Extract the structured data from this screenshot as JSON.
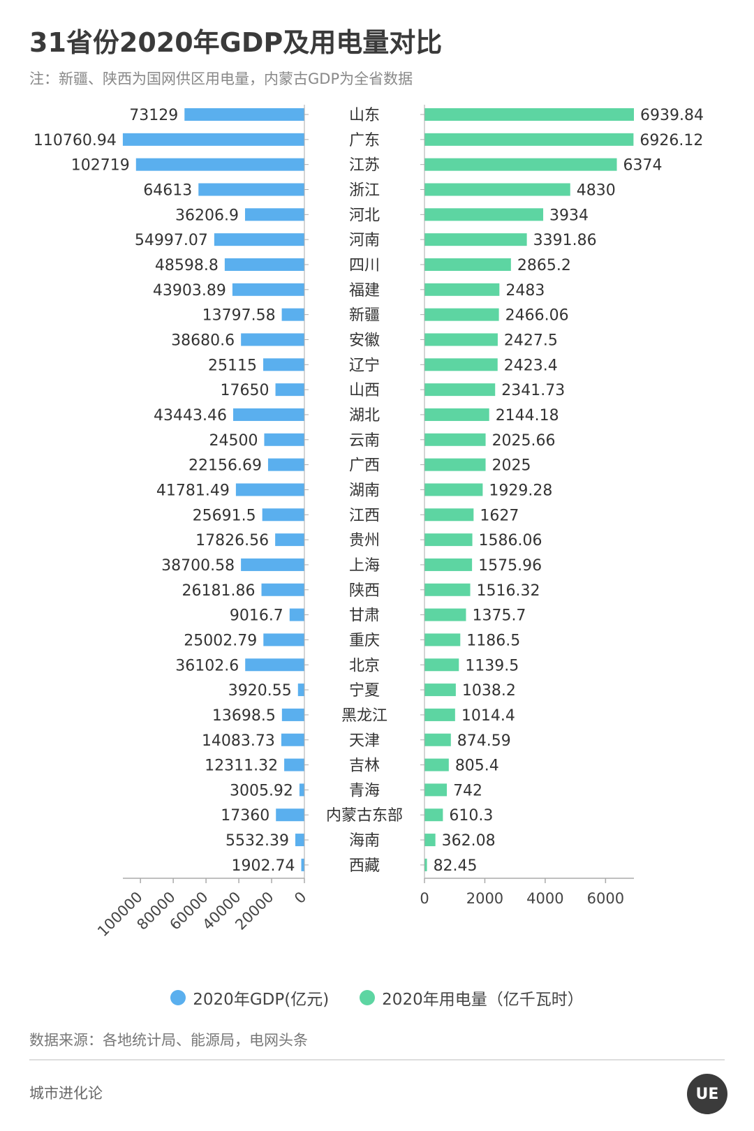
{
  "title": "31省份2020年GDP及用电量对比",
  "subtitle": "注：新疆、陕西为国网供区用电量，内蒙古GDP为全省数据",
  "source": "数据来源：各地统计局、能源局，电网头条",
  "brand": "城市进化论",
  "logo_text": "UE",
  "colors": {
    "gdp": "#5aafee",
    "power": "#5dd5a2",
    "axis": "#aaaaaa",
    "label": "#333333",
    "title": "#3a3a3a"
  },
  "chart_data": {
    "type": "bar",
    "orientation": "horizontal",
    "categories": [
      "山东",
      "广东",
      "江苏",
      "浙江",
      "河北",
      "河南",
      "四川",
      "福建",
      "新疆",
      "安徽",
      "辽宁",
      "山西",
      "湖北",
      "云南",
      "广西",
      "湖南",
      "江西",
      "贵州",
      "上海",
      "陕西",
      "甘肃",
      "重庆",
      "北京",
      "宁夏",
      "黑龙江",
      "天津",
      "吉林",
      "青海",
      "内蒙古东部",
      "海南",
      "西藏"
    ],
    "series": [
      {
        "name": "2020年GDP(亿元)",
        "direction": "left",
        "values": [
          73129,
          110760.94,
          102719,
          64613,
          36206.9,
          54997.07,
          48598.8,
          43903.89,
          13797.58,
          38680.6,
          25115,
          17650,
          43443.46,
          24500,
          22156.69,
          41781.49,
          25691.5,
          17826.56,
          38700.58,
          26181.86,
          9016.7,
          25002.79,
          36102.6,
          3920.55,
          13698.5,
          14083.73,
          12311.32,
          3005.92,
          17360,
          5532.39,
          1902.74
        ],
        "labels": [
          "73129",
          "110760.94",
          "102719",
          "64613",
          "36206.9",
          "54997.07",
          "48598.8",
          "43903.89",
          "13797.58",
          "38680.6",
          "25115",
          "17650",
          "43443.46",
          "24500",
          "22156.69",
          "41781.49",
          "25691.5",
          "17826.56",
          "38700.58",
          "26181.86",
          "9016.7",
          "25002.79",
          "36102.6",
          "3920.55",
          "13698.5",
          "14083.73",
          "12311.32",
          "3005.92",
          "17360",
          "5532.39",
          "1902.74"
        ],
        "ticks": [
          0,
          20000,
          40000,
          60000,
          80000,
          100000
        ],
        "tick_labels": [
          "0",
          "20000",
          "40000",
          "60000",
          "80000",
          "100000"
        ],
        "xlim": [
          0,
          112000
        ]
      },
      {
        "name": "2020年用电量（亿千瓦时）",
        "direction": "right",
        "values": [
          6939.84,
          6926.12,
          6374,
          4830,
          3934,
          3391.86,
          2865.2,
          2483,
          2466.06,
          2427.5,
          2423.4,
          2341.73,
          2144.18,
          2025.66,
          2025,
          1929.28,
          1627,
          1586.06,
          1575.96,
          1516.32,
          1375.7,
          1186.5,
          1139.5,
          1038.2,
          1014.4,
          874.59,
          805.4,
          742,
          610.3,
          362.08,
          82.45
        ],
        "labels": [
          "6939.84",
          "6926.12",
          "6374",
          "4830",
          "3934",
          "3391.86",
          "2865.2",
          "2483",
          "2466.06",
          "2427.5",
          "2423.4",
          "2341.73",
          "2144.18",
          "2025.66",
          "2025",
          "1929.28",
          "1627",
          "1586.06",
          "1575.96",
          "1516.32",
          "1375.7",
          "1186.5",
          "1139.5",
          "1038.2",
          "1014.4",
          "874.59",
          "805.4",
          "742",
          "610.3",
          "362.08",
          "82.45"
        ],
        "ticks": [
          0,
          2000,
          4000,
          6000
        ],
        "tick_labels": [
          "0",
          "2000",
          "4000",
          "6000"
        ],
        "xlim": [
          0,
          6940
        ]
      }
    ],
    "legend": "bottom-center",
    "grid": false
  }
}
